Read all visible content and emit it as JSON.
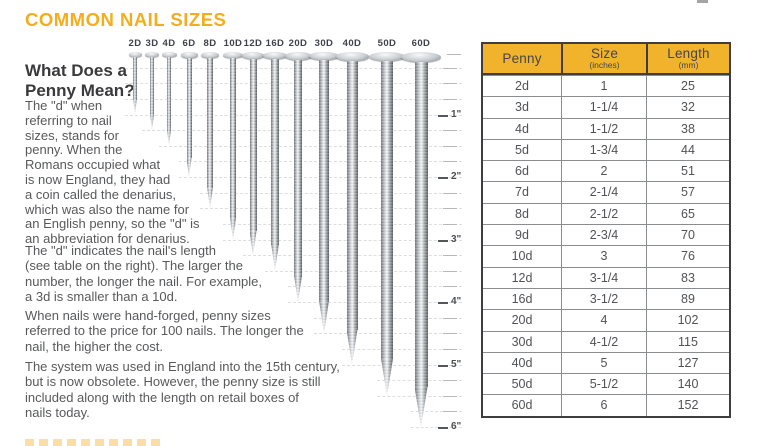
{
  "title": "COMMON NAIL SIZES",
  "section": {
    "heading": "What Does a\nPenny Mean?",
    "paragraphs": [
      "The \"d\" when\nreferring to nail\nsizes, stands for\npenny. When the\nRomans occupied what\nis now England, they had\na coin called the denarius,\nwhich was also the name for\nan English penny, so the \"d\" is\nan abbreviation for denarius.",
      "The \"d\" indicates the nail's length\n(see table on the right). The larger the\nnumber, the longer the nail. For example,\na 3d is smaller than a 10d.",
      "When nails were hand-forged, penny sizes\nreferred to the price for 100 nails. The longer the\nnail, the higher the cost.",
      "The system was used in England into the 15th century,\nbut is now obsolete. However, the penny size is still\nincluded along with the length on retail boxes of\nnails today."
    ]
  },
  "diagram": {
    "inch_labels": [
      "1\"",
      "2\"",
      "3\"",
      "4\"",
      "5\"",
      "6\""
    ],
    "nails": [
      {
        "label": "2D",
        "inches": 1
      },
      {
        "label": "3D",
        "inches": 1.25
      },
      {
        "label": "4D",
        "inches": 1.5
      },
      {
        "label": "6D",
        "inches": 2
      },
      {
        "label": "8D",
        "inches": 2.5
      },
      {
        "label": "10D",
        "inches": 3
      },
      {
        "label": "12D",
        "inches": 3.25
      },
      {
        "label": "16D",
        "inches": 3.5
      },
      {
        "label": "20D",
        "inches": 4
      },
      {
        "label": "30D",
        "inches": 4.5
      },
      {
        "label": "40D",
        "inches": 5
      },
      {
        "label": "50D",
        "inches": 5.5
      },
      {
        "label": "60D",
        "inches": 6
      }
    ]
  },
  "table": {
    "headers": [
      {
        "title": "Penny",
        "sub": ""
      },
      {
        "title": "Size",
        "sub": "(inches)"
      },
      {
        "title": "Length",
        "sub": "(mm)"
      }
    ],
    "rows": [
      [
        "2d",
        "1",
        "25"
      ],
      [
        "3d",
        "1-1/4",
        "32"
      ],
      [
        "4d",
        "1-1/2",
        "38"
      ],
      [
        "5d",
        "1-3/4",
        "44"
      ],
      [
        "6d",
        "2",
        "51"
      ],
      [
        "7d",
        "2-1/4",
        "57"
      ],
      [
        "8d",
        "2-1/2",
        "65"
      ],
      [
        "9d",
        "2-3/4",
        "70"
      ],
      [
        "10d",
        "3",
        "76"
      ],
      [
        "12d",
        "3-1/4",
        "83"
      ],
      [
        "16d",
        "3-1/2",
        "89"
      ],
      [
        "20d",
        "4",
        "102"
      ],
      [
        "30d",
        "4-1/2",
        "115"
      ],
      [
        "40d",
        "5",
        "127"
      ],
      [
        "50d",
        "5-1/2",
        "140"
      ],
      [
        "60d",
        "6",
        "152"
      ]
    ]
  },
  "colors": {
    "accent_title": "#F2AE1C",
    "table_header_bg": "#F0B32B",
    "body_text": "#58595B",
    "heading_text": "#3A3A3C",
    "table_border": "#3E3E40"
  },
  "chart_data": {
    "type": "table",
    "title": "COMMON NAIL SIZES",
    "columns": [
      "Penny",
      "Size (inches)",
      "Length (mm)"
    ],
    "rows": [
      [
        "2d",
        1,
        25
      ],
      [
        "3d",
        1.25,
        32
      ],
      [
        "4d",
        1.5,
        38
      ],
      [
        "5d",
        1.75,
        44
      ],
      [
        "6d",
        2,
        51
      ],
      [
        "7d",
        2.25,
        57
      ],
      [
        "8d",
        2.5,
        65
      ],
      [
        "9d",
        2.75,
        70
      ],
      [
        "10d",
        3,
        76
      ],
      [
        "12d",
        3.25,
        83
      ],
      [
        "16d",
        3.5,
        89
      ],
      [
        "20d",
        4,
        102
      ],
      [
        "30d",
        4.5,
        115
      ],
      [
        "40d",
        5,
        127
      ],
      [
        "50d",
        5.5,
        140
      ],
      [
        "60d",
        6,
        152
      ]
    ],
    "illustrated_nails": {
      "labels": [
        "2D",
        "3D",
        "4D",
        "6D",
        "8D",
        "10D",
        "12D",
        "16D",
        "20D",
        "30D",
        "40D",
        "50D",
        "60D"
      ],
      "length_inches": [
        1,
        1.25,
        1.5,
        2,
        2.5,
        3,
        3.25,
        3.5,
        4,
        4.5,
        5,
        5.5,
        6
      ]
    },
    "ruler_major_ticks_inches": [
      1,
      2,
      3,
      4,
      5,
      6
    ],
    "ruler_minor_step_inches": 0.25
  }
}
